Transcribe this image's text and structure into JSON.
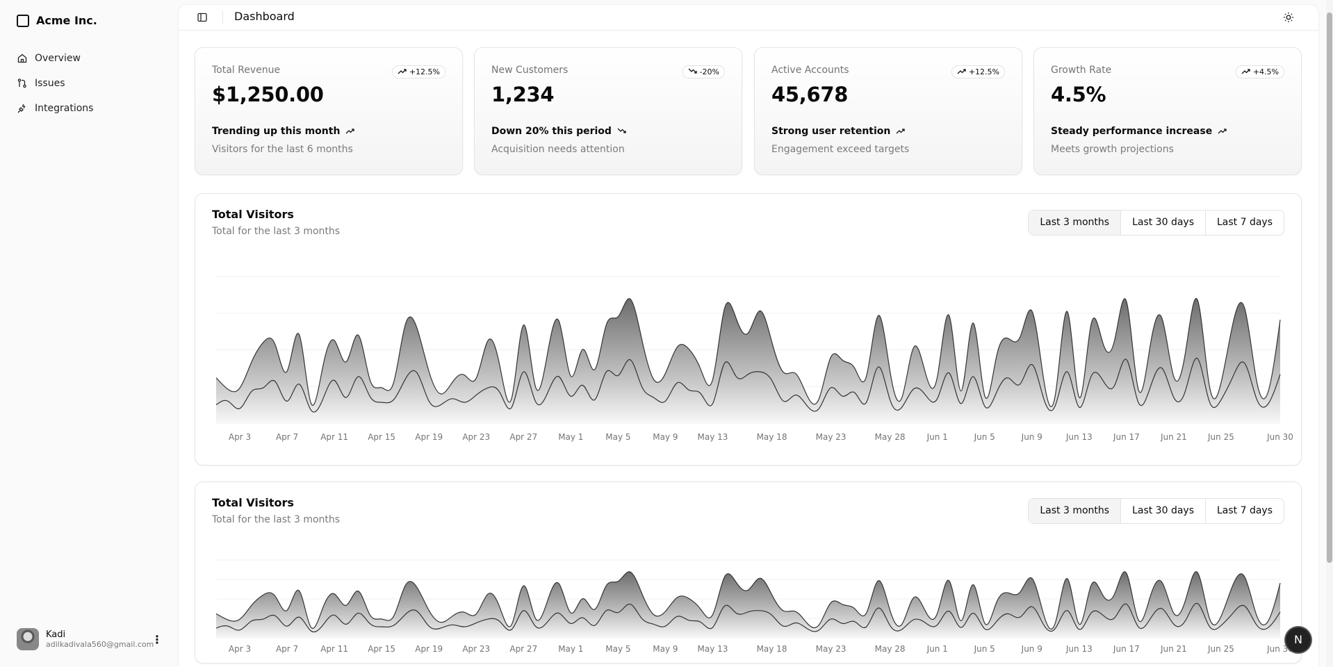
{
  "sidebar": {
    "brand": "Acme Inc.",
    "items": [
      {
        "label": "Overview",
        "icon": "home-icon"
      },
      {
        "label": "Issues",
        "icon": "git-pull-request-icon"
      },
      {
        "label": "Integrations",
        "icon": "plug-icon"
      }
    ],
    "user": {
      "name": "Kadi",
      "email": "adilkadivala560@gmail.com"
    }
  },
  "header": {
    "title": "Dashboard",
    "theme_icon": "sun-icon"
  },
  "cards": [
    {
      "label": "Total Revenue",
      "value": "$1,250.00",
      "badge": "+12.5%",
      "badge_dir": "up",
      "trend": "Trending up this month",
      "trend_dir": "up",
      "desc": "Visitors for the last 6 months"
    },
    {
      "label": "New Customers",
      "value": "1,234",
      "badge": "-20%",
      "badge_dir": "down",
      "trend": "Down 20% this period",
      "trend_dir": "down",
      "desc": "Acquisition needs attention"
    },
    {
      "label": "Active Accounts",
      "value": "45,678",
      "badge": "+12.5%",
      "badge_dir": "up",
      "trend": "Strong user retention",
      "trend_dir": "up",
      "desc": "Engagement exceed targets"
    },
    {
      "label": "Growth Rate",
      "value": "4.5%",
      "badge": "+4.5%",
      "badge_dir": "up",
      "trend": "Steady performance increase",
      "trend_dir": "up",
      "desc": "Meets growth projections"
    }
  ],
  "charts": [
    {
      "title": "Total Visitors",
      "subtitle": "Total for the last 3 months",
      "ranges": [
        "Last 3 months",
        "Last 30 days",
        "Last 7 days"
      ],
      "selected": "Last 3 months"
    },
    {
      "title": "Total Visitors",
      "subtitle": "Total for the last 3 months",
      "ranges": [
        "Last 3 months",
        "Last 30 days",
        "Last 7 days"
      ],
      "selected": "Last 3 months"
    }
  ],
  "fab": {
    "label": "N"
  },
  "chart_data": {
    "type": "area",
    "stacked": true,
    "curve": "natural",
    "ylim": [
      0,
      1200
    ],
    "grid": "horizontal",
    "colors": {
      "line": "#333333",
      "fill_top": "#555555",
      "fill_bottom": "#f5f5f5"
    },
    "x": [
      "Apr 1",
      "Apr 2",
      "Apr 3",
      "Apr 4",
      "Apr 5",
      "Apr 6",
      "Apr 7",
      "Apr 8",
      "Apr 9",
      "Apr 10",
      "Apr 11",
      "Apr 12",
      "Apr 13",
      "Apr 14",
      "Apr 15",
      "Apr 16",
      "Apr 17",
      "Apr 18",
      "Apr 19",
      "Apr 20",
      "Apr 21",
      "Apr 22",
      "Apr 23",
      "Apr 24",
      "Apr 25",
      "Apr 26",
      "Apr 27",
      "Apr 28",
      "Apr 29",
      "Apr 30",
      "May 1",
      "May 2",
      "May 3",
      "May 4",
      "May 5",
      "May 6",
      "May 7",
      "May 8",
      "May 9",
      "May 10",
      "May 11",
      "May 12",
      "May 13",
      "May 14",
      "May 15",
      "May 16",
      "May 17",
      "May 18",
      "May 19",
      "May 20",
      "May 21",
      "May 22",
      "May 23",
      "May 24",
      "May 25",
      "May 26",
      "May 27",
      "May 28",
      "May 29",
      "May 30",
      "May 31",
      "Jun 1",
      "Jun 2",
      "Jun 3",
      "Jun 4",
      "Jun 5",
      "Jun 6",
      "Jun 7",
      "Jun 8",
      "Jun 9",
      "Jun 10",
      "Jun 11",
      "Jun 12",
      "Jun 13",
      "Jun 14",
      "Jun 15",
      "Jun 16",
      "Jun 17",
      "Jun 18",
      "Jun 19",
      "Jun 20",
      "Jun 21",
      "Jun 22",
      "Jun 23",
      "Jun 24",
      "Jun 25",
      "Jun 26",
      "Jun 27",
      "Jun 28",
      "Jun 29",
      "Jun 30"
    ],
    "xticks": [
      "Apr 3",
      "Apr 7",
      "Apr 11",
      "Apr 15",
      "Apr 19",
      "Apr 23",
      "Apr 27",
      "May 1",
      "May 5",
      "May 9",
      "May 13",
      "May 18",
      "May 23",
      "May 28",
      "Jun 1",
      "Jun 5",
      "Jun 9",
      "Jun 13",
      "Jun 17",
      "Jun 21",
      "Jun 25",
      "Jun 30"
    ],
    "series": [
      {
        "values": [
          150,
          180,
          120,
          260,
          290,
          340,
          180,
          320,
          110,
          190,
          350,
          210,
          380,
          220,
          170,
          190,
          360,
          410,
          180,
          150,
          200,
          170,
          230,
          290,
          250,
          130,
          420,
          180,
          240,
          380,
          220,
          310,
          190,
          420,
          390,
          520,
          300,
          210,
          180,
          330,
          270,
          240,
          160,
          490,
          380,
          400,
          420,
          350,
          180,
          230,
          140,
          120,
          290,
          220,
          250,
          170,
          460,
          190,
          130,
          280,
          230,
          200,
          410,
          160,
          380,
          140,
          250,
          370,
          320,
          480,
          200,
          150,
          420,
          130,
          380,
          350,
          310,
          520,
          170,
          290,
          450,
          210,
          270,
          530,
          180,
          190,
          380,
          490,
          200,
          160,
          400
        ]
      },
      {
        "values": [
          222,
          97,
          167,
          242,
          373,
          301,
          245,
          409,
          59,
          261,
          327,
          292,
          342,
          137,
          120,
          138,
          446,
          364,
          243,
          89,
          137,
          224,
          138,
          387,
          215,
          75,
          383,
          122,
          315,
          454,
          165,
          293,
          247,
          385,
          481,
          498,
          388,
          149,
          227,
          293,
          335,
          197,
          197,
          448,
          473,
          338,
          499,
          315,
          235,
          177,
          82,
          81,
          252,
          294,
          201,
          213,
          420,
          233,
          78,
          340,
          178,
          178,
          470,
          103,
          439,
          88,
          294,
          323,
          385,
          438,
          155,
          92,
          492,
          81,
          426,
          307,
          371,
          475,
          107,
          341,
          408,
          169,
          317,
          480,
          132,
          141,
          434,
          448,
          149,
          103,
          446
        ]
      }
    ]
  }
}
